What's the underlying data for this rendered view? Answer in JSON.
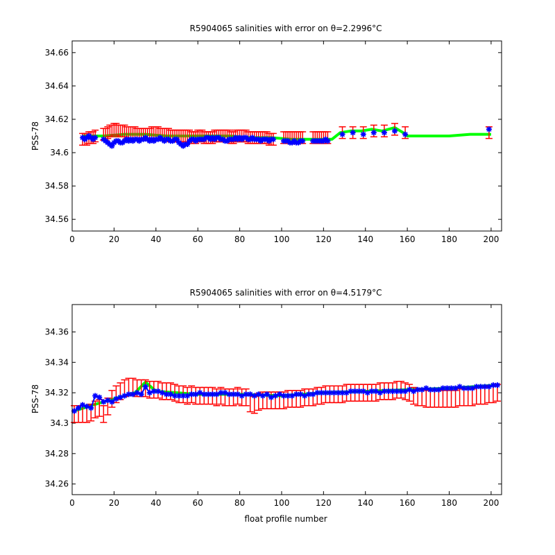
{
  "chart_data": [
    {
      "type": "line",
      "title": "R5904065 salinities with error on θ=2.2996°C",
      "xlabel": "",
      "ylabel": "PSS-78",
      "xlim": [
        0,
        205
      ],
      "ylim": [
        34.553,
        34.667
      ],
      "xticks": [
        "0",
        "20",
        "40",
        "60",
        "80",
        "100",
        "120",
        "140",
        "160",
        "180",
        "200"
      ],
      "yticks": [
        "34.56",
        "34.58",
        "34.6",
        "34.62",
        "34.64",
        "34.66"
      ],
      "grid": false,
      "colors": {
        "calibrated": "#ff0000",
        "original": "#0000ff",
        "mapped": "#00ff00",
        "axes": "#000000"
      },
      "series": [
        {
          "x": [
            5,
            6,
            7,
            8,
            9,
            10,
            11,
            15,
            16,
            17,
            18,
            19,
            20,
            21,
            22,
            23,
            24,
            25,
            26,
            27,
            28,
            29,
            30,
            31,
            32,
            33,
            34,
            35,
            36,
            37,
            38,
            39,
            40,
            41,
            42,
            43,
            44,
            45,
            46,
            47,
            48,
            49,
            50,
            51,
            52,
            53,
            54,
            55,
            56,
            57,
            58,
            59,
            60,
            61,
            62,
            63,
            64,
            65,
            66,
            67,
            68,
            69,
            70,
            71,
            72,
            73,
            74,
            75,
            76,
            77,
            78,
            79,
            80,
            81,
            82,
            83,
            84,
            85,
            86,
            87,
            88,
            89,
            90,
            91,
            92,
            93,
            94,
            95,
            96,
            101,
            102,
            103,
            104,
            105,
            106,
            107,
            108,
            109,
            110,
            115,
            116,
            117,
            118,
            119,
            120,
            121,
            122,
            129,
            134,
            139,
            144,
            149,
            154,
            159,
            199
          ],
          "values": [
            34.609,
            34.608,
            34.609,
            34.61,
            34.609,
            34.608,
            34.609,
            34.608,
            34.607,
            34.606,
            34.605,
            34.604,
            34.606,
            34.607,
            34.607,
            34.606,
            34.606,
            34.607,
            34.608,
            34.607,
            34.608,
            34.607,
            34.608,
            34.608,
            34.607,
            34.608,
            34.608,
            34.609,
            34.608,
            34.607,
            34.608,
            34.607,
            34.608,
            34.608,
            34.609,
            34.608,
            34.607,
            34.608,
            34.608,
            34.607,
            34.607,
            34.608,
            34.608,
            34.606,
            34.605,
            34.604,
            34.605,
            34.605,
            34.607,
            34.608,
            34.608,
            34.607,
            34.608,
            34.608,
            34.608,
            34.608,
            34.609,
            34.609,
            34.608,
            34.609,
            34.608,
            34.609,
            34.609,
            34.608,
            34.608,
            34.607,
            34.607,
            34.608,
            34.608,
            34.608,
            34.609,
            34.608,
            34.609,
            34.608,
            34.609,
            34.609,
            34.608,
            34.608,
            34.609,
            34.608,
            34.608,
            34.608,
            34.607,
            34.608,
            34.608,
            34.608,
            34.607,
            34.608,
            34.608,
            34.607,
            34.607,
            34.607,
            34.606,
            34.606,
            34.607,
            34.606,
            34.606,
            34.607,
            34.607,
            34.607,
            34.607,
            34.607,
            34.607,
            34.607,
            34.607,
            34.608,
            34.607,
            34.611,
            34.612,
            34.611,
            34.612,
            34.612,
            34.613,
            34.611,
            34.614
          ],
          "calibrated": [
            34.608,
            34.608,
            34.608,
            34.609,
            34.609,
            34.609,
            34.61,
            34.611,
            34.611,
            34.612,
            34.613,
            34.613,
            34.614,
            34.614,
            34.613,
            34.613,
            34.613,
            34.613,
            34.612,
            34.612,
            34.612,
            34.612,
            34.612,
            34.611,
            34.611,
            34.611,
            34.611,
            34.611,
            34.611,
            34.611,
            34.612,
            34.612,
            34.612,
            34.612,
            34.611,
            34.611,
            34.611,
            34.611,
            34.611,
            34.61,
            34.61,
            34.61,
            34.61,
            34.61,
            34.61,
            34.61,
            34.61,
            34.61,
            34.61,
            34.609,
            34.609,
            34.609,
            34.61,
            34.61,
            34.61,
            34.609,
            34.609,
            34.609,
            34.609,
            34.609,
            34.61,
            34.61,
            34.61,
            34.61,
            34.61,
            34.61,
            34.61,
            34.61,
            34.609,
            34.609,
            34.61,
            34.61,
            34.61,
            34.61,
            34.61,
            34.61,
            34.609,
            34.609,
            34.609,
            34.609,
            34.609,
            34.609,
            34.609,
            34.609,
            34.609,
            34.609,
            34.608,
            34.608,
            34.608,
            34.609,
            34.609,
            34.609,
            34.609,
            34.609,
            34.609,
            34.609,
            34.609,
            34.609,
            34.609,
            34.609,
            34.609,
            34.609,
            34.609,
            34.609,
            34.609,
            34.609,
            34.609,
            34.612,
            34.612,
            34.612,
            34.613,
            34.613,
            34.614,
            34.612,
            34.612
          ],
          "error": 0.0035
        },
        {
          "x": [
            5,
            15,
            25,
            35,
            45,
            55,
            65,
            75,
            85,
            95,
            105,
            115,
            122,
            124,
            128,
            133,
            138,
            143,
            148,
            154,
            158,
            160,
            170,
            180,
            190,
            200
          ],
          "values": [
            34.61,
            34.61,
            34.611,
            34.611,
            34.61,
            34.61,
            34.61,
            34.61,
            34.609,
            34.609,
            34.608,
            34.608,
            34.608,
            34.608,
            34.612,
            34.613,
            34.613,
            34.614,
            34.613,
            34.615,
            34.612,
            34.61,
            34.61,
            34.61,
            34.611,
            34.611
          ]
        }
      ]
    },
    {
      "type": "line",
      "title": "R5904065 salinities with error on θ=4.5179°C",
      "xlabel": "float profile number",
      "ylabel": "PSS-78",
      "xlim": [
        0,
        205
      ],
      "ylim": [
        34.253,
        34.378
      ],
      "xticks": [
        "0",
        "20",
        "40",
        "60",
        "80",
        "100",
        "120",
        "140",
        "160",
        "180",
        "200"
      ],
      "yticks": [
        "34.26",
        "34.28",
        "34.3",
        "34.32",
        "34.34",
        "34.36"
      ],
      "grid": false,
      "series": [
        {
          "x": [
            1,
            3,
            5,
            7,
            9,
            11,
            13,
            15,
            17,
            19,
            21,
            23,
            25,
            27,
            29,
            31,
            33,
            35,
            37,
            39,
            41,
            43,
            45,
            47,
            49,
            51,
            53,
            55,
            57,
            59,
            61,
            63,
            65,
            67,
            69,
            71,
            73,
            75,
            77,
            79,
            81,
            83,
            85,
            87,
            89,
            91,
            93,
            95,
            97,
            99,
            101,
            103,
            105,
            107,
            109,
            111,
            113,
            115,
            117,
            119,
            121,
            123,
            125,
            127,
            129,
            131,
            133,
            135,
            137,
            139,
            141,
            143,
            145,
            147,
            149,
            151,
            153,
            155,
            157,
            159,
            161,
            163,
            165,
            167,
            169,
            171,
            173,
            175,
            177,
            179,
            181,
            183,
            185,
            187,
            189,
            191,
            193,
            195,
            197,
            199,
            201,
            203
          ],
          "values": [
            34.308,
            34.31,
            34.312,
            34.311,
            34.31,
            34.318,
            34.317,
            34.314,
            34.315,
            34.314,
            34.316,
            34.317,
            34.318,
            34.319,
            34.319,
            34.32,
            34.319,
            34.324,
            34.32,
            34.321,
            34.321,
            34.32,
            34.319,
            34.319,
            34.318,
            34.318,
            34.318,
            34.318,
            34.319,
            34.319,
            34.32,
            34.319,
            34.319,
            34.319,
            34.319,
            34.32,
            34.32,
            34.319,
            34.319,
            34.319,
            34.318,
            34.319,
            34.319,
            34.318,
            34.319,
            34.318,
            34.319,
            34.317,
            34.318,
            34.319,
            34.318,
            34.318,
            34.318,
            34.319,
            34.319,
            34.318,
            34.319,
            34.319,
            34.32,
            34.32,
            34.32,
            34.32,
            34.32,
            34.32,
            34.32,
            34.32,
            34.321,
            34.321,
            34.321,
            34.321,
            34.32,
            34.321,
            34.321,
            34.32,
            34.321,
            34.321,
            34.321,
            34.321,
            34.321,
            34.321,
            34.322,
            34.321,
            34.322,
            34.322,
            34.323,
            34.322,
            34.322,
            34.322,
            34.323,
            34.323,
            34.323,
            34.323,
            34.324,
            34.323,
            34.323,
            34.323,
            34.324,
            34.324,
            34.324,
            34.324,
            34.325,
            34.325
          ],
          "calibrated": [
            34.306,
            34.306,
            34.306,
            34.306,
            34.307,
            34.309,
            34.31,
            34.306,
            34.311,
            34.316,
            34.319,
            34.321,
            34.323,
            34.324,
            34.324,
            34.323,
            34.323,
            34.323,
            34.322,
            34.322,
            34.322,
            34.321,
            34.321,
            34.321,
            34.32,
            34.319,
            34.319,
            34.318,
            34.319,
            34.318,
            34.318,
            34.318,
            34.318,
            34.318,
            34.317,
            34.318,
            34.317,
            34.317,
            34.317,
            34.318,
            34.317,
            34.317,
            34.313,
            34.312,
            34.314,
            34.315,
            34.315,
            34.315,
            34.315,
            34.315,
            34.315,
            34.316,
            34.316,
            34.316,
            34.316,
            34.317,
            34.317,
            34.317,
            34.318,
            34.318,
            34.319,
            34.319,
            34.319,
            34.319,
            34.319,
            34.32,
            34.32,
            34.32,
            34.32,
            34.32,
            34.32,
            34.32,
            34.32,
            34.321,
            34.321,
            34.321,
            34.321,
            34.322,
            34.322,
            34.321,
            34.32,
            34.318,
            34.317,
            34.317,
            34.316,
            34.316,
            34.316,
            34.316,
            34.316,
            34.316,
            34.316,
            34.316,
            34.317,
            34.317,
            34.317,
            34.317,
            34.318,
            34.318,
            34.318,
            34.319,
            34.319,
            34.32
          ],
          "error": 0.0055
        },
        {
          "x": [
            1,
            10,
            20,
            30,
            35,
            40,
            60,
            80,
            100,
            120,
            140,
            160,
            180,
            203
          ],
          "values": [
            34.308,
            34.312,
            34.316,
            34.32,
            34.327,
            34.321,
            34.319,
            34.319,
            34.318,
            34.32,
            34.321,
            34.322,
            34.323,
            34.325
          ]
        }
      ]
    }
  ]
}
